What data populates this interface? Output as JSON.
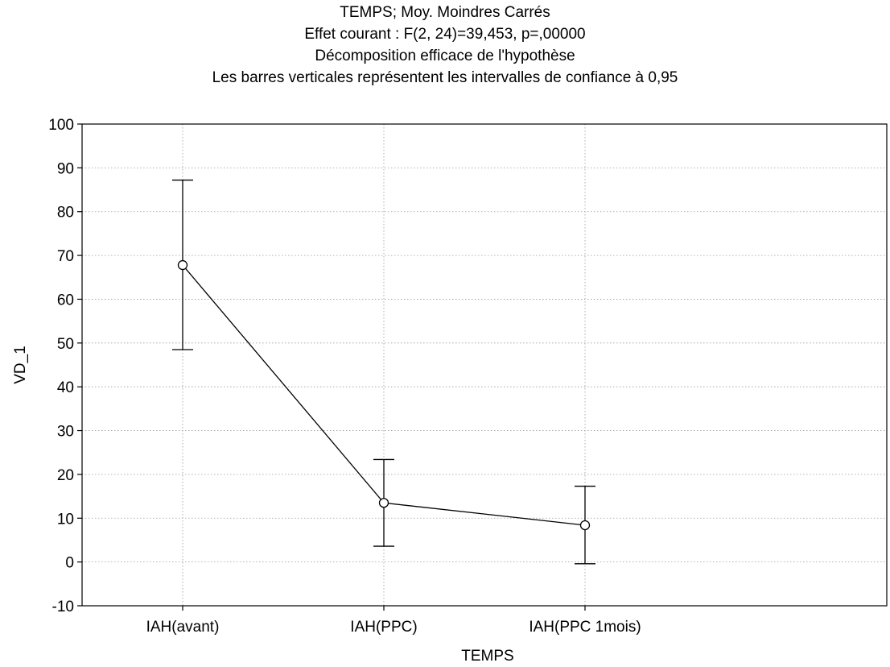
{
  "chart_data": {
    "type": "line",
    "title_lines": [
      "TEMPS; Moy. Moindres Carrés",
      "Effet courant : F(2, 24)=39,453, p=,00000",
      "Décomposition efficace de l'hypothèse",
      "Les barres verticales représentent les intervalles de confiance à 0,95"
    ],
    "xlabel": "TEMPS",
    "ylabel": "VD_1",
    "categories": [
      "IAH(avant)",
      "IAH(PPC)",
      "IAH(PPC 1mois)"
    ],
    "series": [
      {
        "values": [
          67.8,
          13.5,
          8.4
        ],
        "ci_low": [
          48.5,
          3.6,
          -0.4
        ],
        "ci_high": [
          87.2,
          23.4,
          17.3
        ]
      }
    ],
    "ylim": [
      -10,
      100
    ],
    "yticks": [
      -10,
      0,
      10,
      20,
      30,
      40,
      50,
      60,
      70,
      80,
      90,
      100
    ],
    "grid": true,
    "marker": "open-circle"
  }
}
